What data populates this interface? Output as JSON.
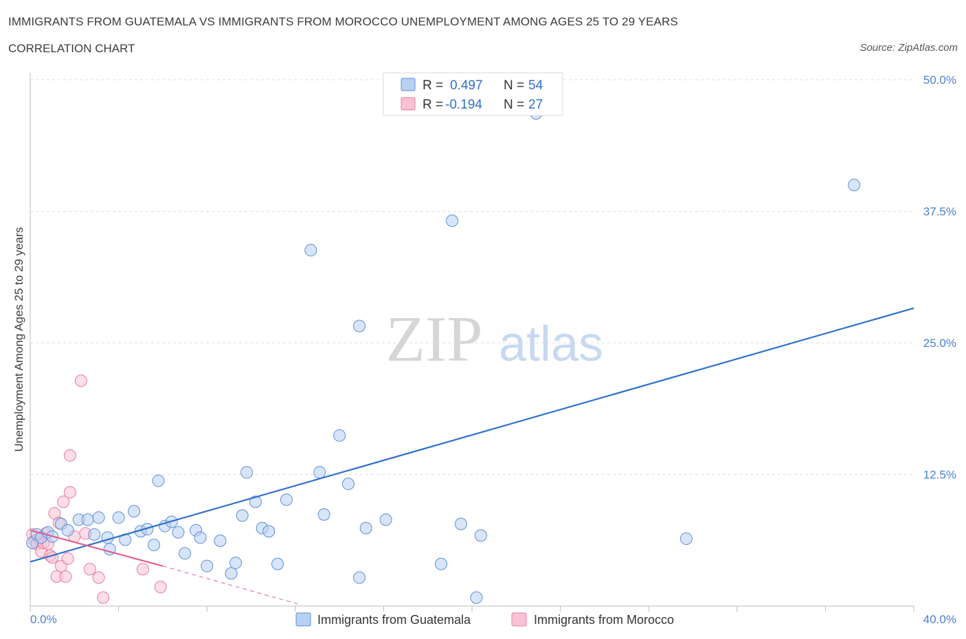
{
  "title": "IMMIGRANTS FROM GUATEMALA VS IMMIGRANTS FROM MOROCCO UNEMPLOYMENT AMONG AGES 25 TO 29 YEARS",
  "subtitle": "CORRELATION CHART",
  "source": "Source: ZipAtlas.com",
  "watermark": {
    "zip": "ZIP",
    "atlas": "atlas"
  },
  "colors": {
    "guatemala": "#5b8fd6",
    "guatemala_fill": "#b8d0f2",
    "guatemala_line": "#2f6fce",
    "morocco": "#e87aa0",
    "morocco_fill": "#f7c3d3",
    "morocco_line": "#e0608c",
    "tick": "#4a7fd0",
    "grid": "#dddddd"
  },
  "legend": {
    "rows": [
      {
        "r_label": "R =",
        "r_value": "0.497",
        "n_label": "N =",
        "n_value": "54"
      },
      {
        "r_label": "R =",
        "r_value": "-0.194",
        "n_label": "N =",
        "n_value": "27"
      }
    ]
  },
  "chart_data": {
    "type": "scatter",
    "xlabel": "",
    "ylabel": "Unemployment Among Ages 25 to 29 years",
    "xlim": [
      0,
      40
    ],
    "ylim": [
      0,
      50
    ],
    "x_tick_labels": [
      "0.0%",
      "40.0%"
    ],
    "y_ticks": [
      12.5,
      25.0,
      37.5,
      50.0
    ],
    "y_tick_labels": [
      "12.5%",
      "25.0%",
      "37.5%",
      "50.0%"
    ],
    "grid": true,
    "series": [
      {
        "name": "Immigrants from Guatemala",
        "R": 0.497,
        "N": 54,
        "trendline": {
          "x": [
            0,
            40
          ],
          "y": [
            4.2,
            28.3
          ]
        },
        "points": [
          {
            "x": 0.1,
            "y": 6.0
          },
          {
            "x": 0.3,
            "y": 6.8
          },
          {
            "x": 0.5,
            "y": 6.5
          },
          {
            "x": 0.8,
            "y": 7.0
          },
          {
            "x": 1.0,
            "y": 6.6
          },
          {
            "x": 1.4,
            "y": 7.8
          },
          {
            "x": 1.7,
            "y": 7.2
          },
          {
            "x": 2.2,
            "y": 8.2
          },
          {
            "x": 2.6,
            "y": 8.2
          },
          {
            "x": 2.9,
            "y": 6.8
          },
          {
            "x": 3.1,
            "y": 8.4
          },
          {
            "x": 3.5,
            "y": 6.5
          },
          {
            "x": 3.6,
            "y": 5.4
          },
          {
            "x": 4.0,
            "y": 8.4
          },
          {
            "x": 4.3,
            "y": 6.3
          },
          {
            "x": 4.7,
            "y": 9.0
          },
          {
            "x": 5.0,
            "y": 7.1
          },
          {
            "x": 5.3,
            "y": 7.3
          },
          {
            "x": 5.6,
            "y": 5.8
          },
          {
            "x": 5.8,
            "y": 11.9
          },
          {
            "x": 6.1,
            "y": 7.6
          },
          {
            "x": 6.4,
            "y": 8.0
          },
          {
            "x": 6.7,
            "y": 7.0
          },
          {
            "x": 7.0,
            "y": 5.0
          },
          {
            "x": 7.5,
            "y": 7.2
          },
          {
            "x": 7.7,
            "y": 6.5
          },
          {
            "x": 8.0,
            "y": 3.8
          },
          {
            "x": 8.6,
            "y": 6.2
          },
          {
            "x": 9.1,
            "y": 3.1
          },
          {
            "x": 9.3,
            "y": 4.1
          },
          {
            "x": 9.6,
            "y": 8.6
          },
          {
            "x": 9.8,
            "y": 12.7
          },
          {
            "x": 10.2,
            "y": 9.9
          },
          {
            "x": 10.5,
            "y": 7.4
          },
          {
            "x": 10.8,
            "y": 7.1
          },
          {
            "x": 11.2,
            "y": 4.0
          },
          {
            "x": 11.6,
            "y": 10.1
          },
          {
            "x": 12.7,
            "y": 33.8
          },
          {
            "x": 13.1,
            "y": 12.7
          },
          {
            "x": 13.3,
            "y": 8.7
          },
          {
            "x": 14.0,
            "y": 16.2
          },
          {
            "x": 14.4,
            "y": 11.6
          },
          {
            "x": 14.9,
            "y": 26.6
          },
          {
            "x": 14.9,
            "y": 2.7
          },
          {
            "x": 15.2,
            "y": 7.4
          },
          {
            "x": 16.1,
            "y": 8.2
          },
          {
            "x": 18.6,
            "y": 4.0
          },
          {
            "x": 19.1,
            "y": 36.6
          },
          {
            "x": 19.5,
            "y": 7.8
          },
          {
            "x": 20.2,
            "y": 0.8
          },
          {
            "x": 20.4,
            "y": 6.7
          },
          {
            "x": 22.9,
            "y": 46.8
          },
          {
            "x": 29.7,
            "y": 6.4
          },
          {
            "x": 37.3,
            "y": 40.0
          }
        ]
      },
      {
        "name": "Immigrants from Morocco",
        "R": -0.194,
        "N": 27,
        "trendline": {
          "x": [
            0,
            6.0
          ],
          "y": [
            7.2,
            3.8
          ],
          "dashed_extension": {
            "x": [
              6.0,
              12.1
            ],
            "y": [
              3.8,
              0.2
            ]
          }
        },
        "points": [
          {
            "x": 0.1,
            "y": 6.8
          },
          {
            "x": 0.2,
            "y": 6.2
          },
          {
            "x": 0.3,
            "y": 5.9
          },
          {
            "x": 0.4,
            "y": 6.4
          },
          {
            "x": 0.5,
            "y": 5.2
          },
          {
            "x": 0.6,
            "y": 6.0
          },
          {
            "x": 0.7,
            "y": 6.9
          },
          {
            "x": 0.8,
            "y": 5.9
          },
          {
            "x": 0.9,
            "y": 4.8
          },
          {
            "x": 1.0,
            "y": 4.6
          },
          {
            "x": 1.1,
            "y": 8.8
          },
          {
            "x": 1.2,
            "y": 2.8
          },
          {
            "x": 1.3,
            "y": 7.9
          },
          {
            "x": 1.4,
            "y": 3.8
          },
          {
            "x": 1.5,
            "y": 9.9
          },
          {
            "x": 1.6,
            "y": 2.8
          },
          {
            "x": 1.7,
            "y": 4.5
          },
          {
            "x": 1.8,
            "y": 10.8
          },
          {
            "x": 1.8,
            "y": 14.3
          },
          {
            "x": 2.0,
            "y": 6.6
          },
          {
            "x": 2.3,
            "y": 21.4
          },
          {
            "x": 2.5,
            "y": 6.9
          },
          {
            "x": 2.7,
            "y": 3.5
          },
          {
            "x": 3.1,
            "y": 2.7
          },
          {
            "x": 3.3,
            "y": 0.8
          },
          {
            "x": 5.1,
            "y": 3.5
          },
          {
            "x": 5.9,
            "y": 1.8
          }
        ]
      }
    ]
  }
}
